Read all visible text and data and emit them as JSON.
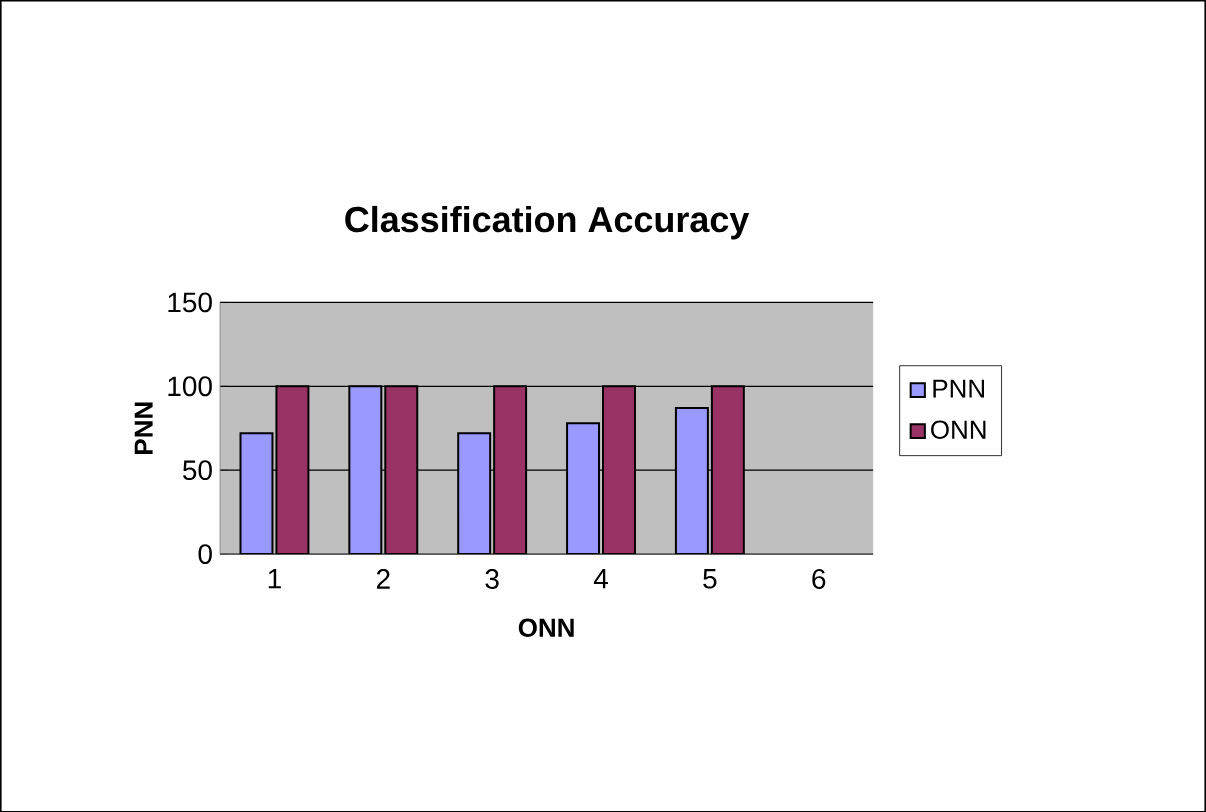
{
  "chart_data": {
    "type": "bar",
    "title": "Classification Accuracy",
    "xlabel": "ONN",
    "ylabel": "PNN",
    "categories": [
      "1",
      "2",
      "3",
      "4",
      "5",
      "6"
    ],
    "series": [
      {
        "name": "PNN",
        "color": "#9999ff",
        "values": [
          72,
          100,
          72,
          78,
          87,
          null
        ]
      },
      {
        "name": "ONN",
        "color": "#993366",
        "values": [
          100,
          100,
          100,
          100,
          100,
          null
        ]
      }
    ],
    "ylim": [
      0,
      150
    ],
    "yticks": [
      0,
      50,
      100,
      150
    ],
    "grid": "y",
    "legend": "right"
  }
}
